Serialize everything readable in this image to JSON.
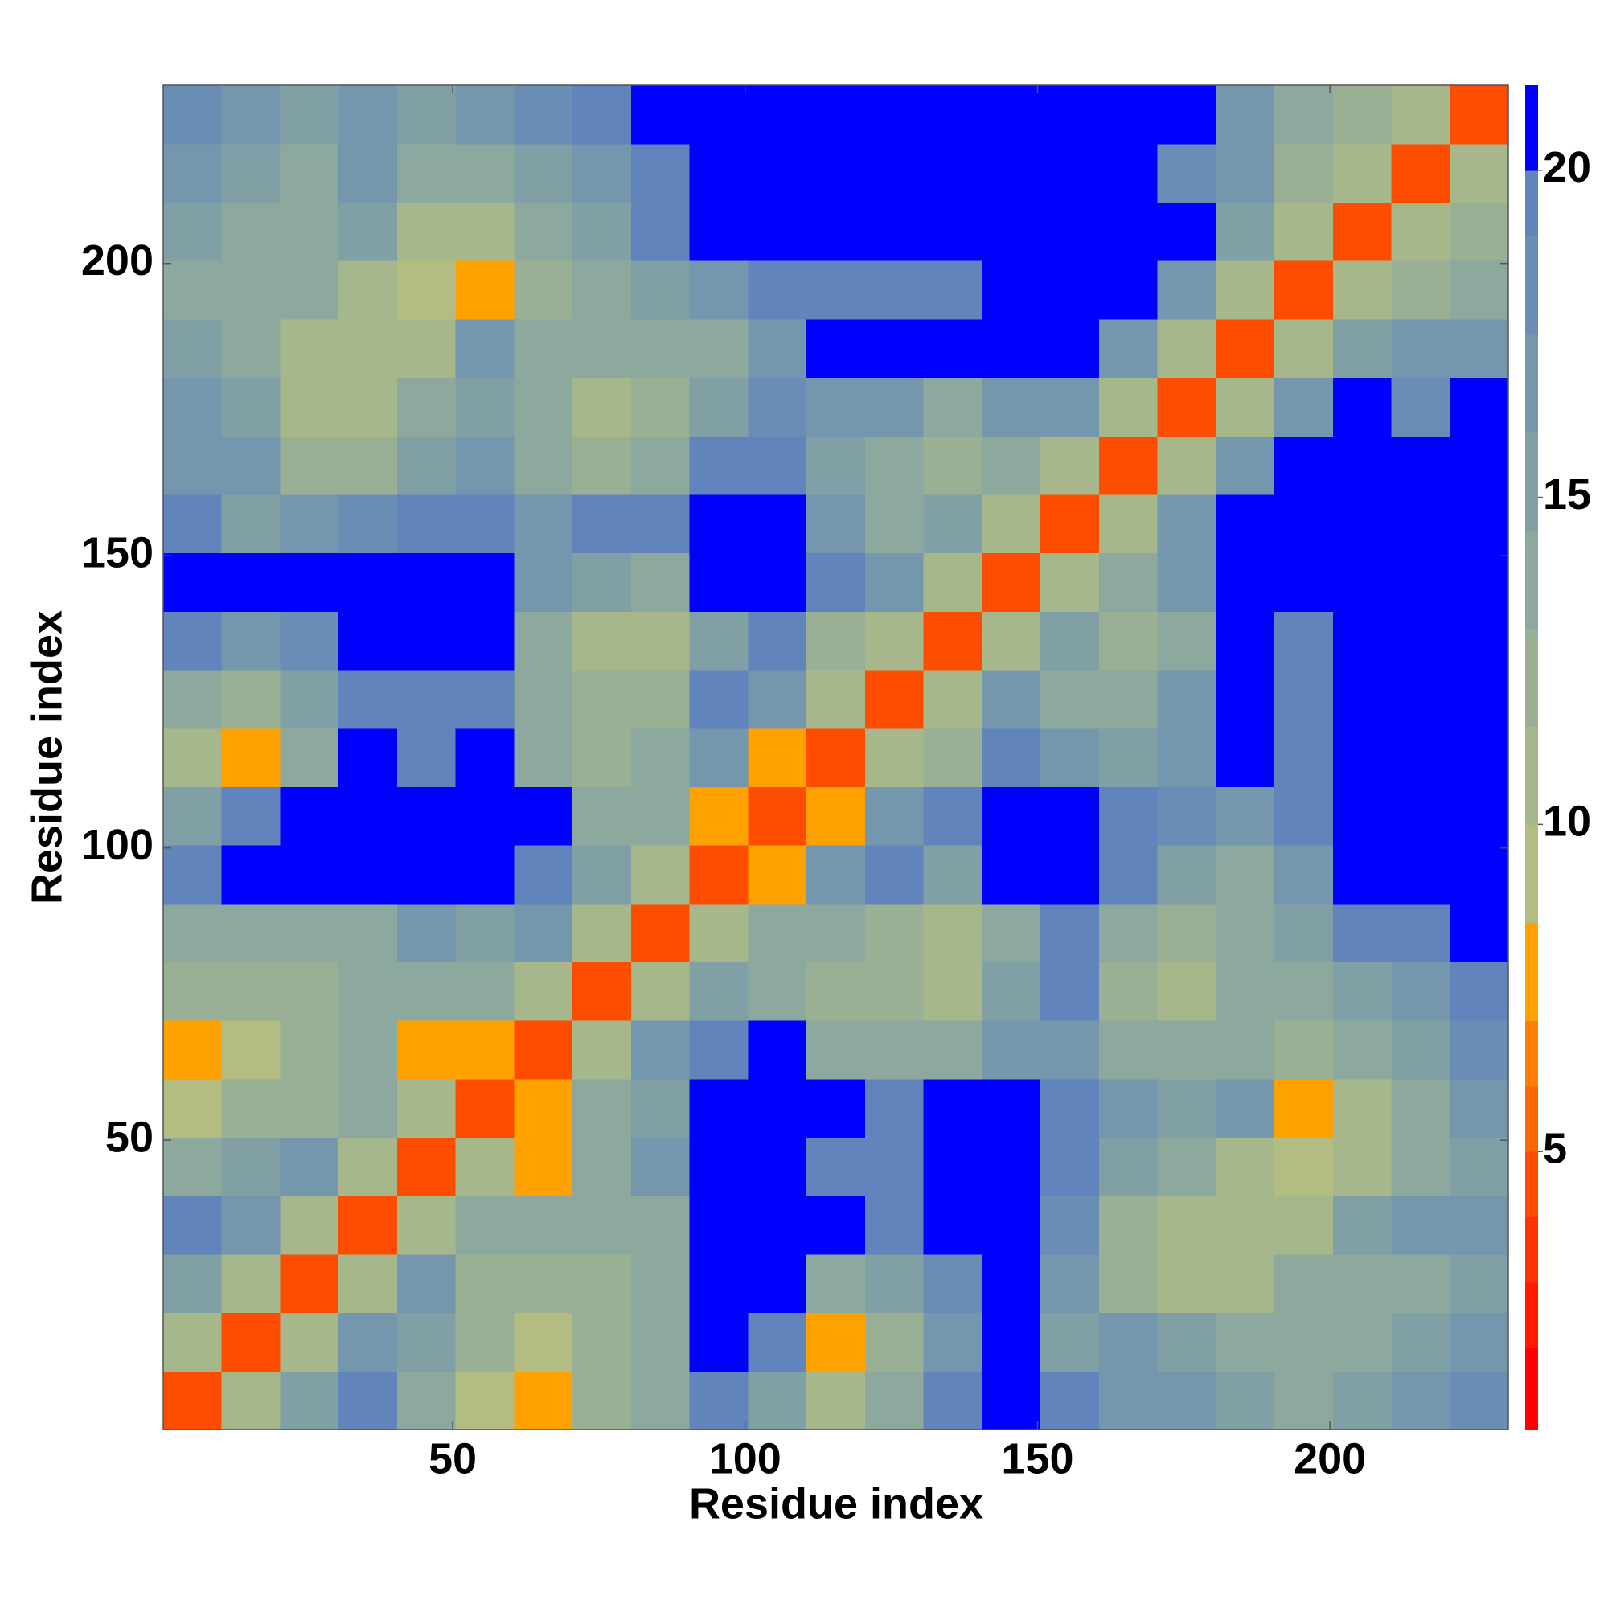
{
  "chart_data": {
    "type": "heatmap",
    "x_label": "Residue index",
    "y_label": "Residue index",
    "x_edges": [
      0.5,
      10.5,
      20.5,
      30.5,
      40.5,
      50.5,
      60.5,
      70.5,
      80.5,
      90.5,
      100.5,
      110.5,
      120.5,
      130.5,
      140.5,
      150.5,
      160.5,
      170.5,
      180.5,
      190.5,
      200.5,
      210.5,
      220.5,
      230.5
    ],
    "y_edges": [
      0.5,
      10.5,
      20.5,
      30.5,
      40.5,
      50.5,
      60.5,
      70.5,
      80.5,
      90.5,
      100.5,
      110.5,
      120.5,
      130.5,
      140.5,
      150.5,
      160.5,
      170.5,
      180.5,
      190.5,
      200.5,
      210.5,
      220.5,
      230.5
    ],
    "z": [
      [
        4,
        11,
        15,
        19,
        14,
        9,
        8,
        12,
        13,
        19,
        15,
        10,
        13,
        19,
        21,
        19,
        17,
        16,
        15,
        14,
        15,
        17,
        18
      ],
      [
        11,
        4,
        11,
        17,
        15,
        12,
        9,
        12,
        14,
        21,
        19,
        8,
        12,
        17,
        21,
        15,
        16,
        15,
        14,
        14,
        14,
        15,
        16
      ],
      [
        15,
        11,
        4,
        11,
        17,
        12,
        12,
        12,
        14,
        21,
        21,
        14,
        15,
        18,
        21,
        16,
        12,
        11,
        11,
        13,
        13,
        14,
        15
      ],
      [
        19,
        17,
        11,
        4,
        11,
        13,
        13,
        13,
        14,
        21,
        21,
        21,
        19,
        21,
        21,
        18,
        12,
        11,
        10,
        11,
        15,
        16,
        17
      ],
      [
        14,
        15,
        17,
        11,
        4,
        11,
        8,
        14,
        16,
        21,
        21,
        19,
        19,
        21,
        21,
        19,
        15,
        13,
        11,
        9,
        10,
        14,
        15
      ],
      [
        9,
        12,
        12,
        13,
        11,
        4,
        7,
        13,
        15,
        21,
        21,
        21,
        19,
        21,
        21,
        19,
        17,
        15,
        16,
        8,
        10,
        14,
        16
      ],
      [
        8,
        9,
        12,
        13,
        8,
        7,
        4,
        11,
        16,
        19,
        21,
        14,
        13,
        14,
        16,
        17,
        14,
        14,
        14,
        12,
        14,
        15,
        18
      ],
      [
        12,
        12,
        12,
        13,
        14,
        13,
        11,
        4,
        11,
        15,
        14,
        12,
        12,
        11,
        15,
        19,
        12,
        11,
        13,
        14,
        15,
        17,
        19
      ],
      [
        13,
        14,
        14,
        14,
        16,
        15,
        16,
        11,
        4,
        11,
        13,
        13,
        12,
        11,
        14,
        19,
        13,
        12,
        13,
        15,
        19,
        19,
        21
      ],
      [
        19,
        21,
        21,
        21,
        21,
        21,
        19,
        15,
        11,
        4,
        7,
        16,
        19,
        15,
        21,
        21,
        19,
        15,
        14,
        17,
        21,
        21,
        21
      ],
      [
        15,
        19,
        21,
        21,
        21,
        21,
        21,
        14,
        13,
        7,
        4,
        8,
        17,
        19,
        21,
        21,
        19,
        18,
        16,
        19,
        21,
        20,
        21
      ],
      [
        10,
        8,
        14,
        21,
        19,
        21,
        14,
        12,
        13,
        16,
        8,
        4,
        11,
        12,
        19,
        16,
        15,
        17,
        21,
        19,
        21,
        21,
        21
      ],
      [
        13,
        12,
        15,
        19,
        19,
        19,
        13,
        12,
        12,
        19,
        17,
        11,
        4,
        11,
        17,
        14,
        13,
        16,
        21,
        19,
        20,
        21,
        21
      ],
      [
        19,
        17,
        18,
        21,
        21,
        21,
        14,
        11,
        11,
        15,
        19,
        12,
        11,
        4,
        11,
        15,
        12,
        14,
        21,
        19,
        21,
        21,
        21
      ],
      [
        21,
        21,
        21,
        21,
        21,
        21,
        16,
        15,
        14,
        21,
        21,
        19,
        17,
        11,
        4,
        11,
        13,
        17,
        21,
        21,
        21,
        21,
        21
      ],
      [
        19,
        15,
        16,
        18,
        19,
        19,
        17,
        19,
        19,
        21,
        21,
        16,
        14,
        15,
        11,
        4,
        11,
        17,
        21,
        21,
        21,
        21,
        21
      ],
      [
        17,
        16,
        12,
        12,
        15,
        17,
        14,
        12,
        13,
        19,
        19,
        15,
        13,
        12,
        13,
        11,
        4,
        11,
        17,
        21,
        21,
        21,
        21
      ],
      [
        16,
        15,
        11,
        11,
        13,
        15,
        14,
        11,
        12,
        15,
        18,
        17,
        16,
        14,
        17,
        17,
        11,
        4,
        11,
        16,
        20,
        18,
        21
      ],
      [
        15,
        14,
        11,
        10,
        11,
        16,
        14,
        13,
        13,
        14,
        16,
        21,
        21,
        21,
        21,
        21,
        17,
        11,
        4,
        11,
        15,
        16,
        17
      ],
      [
        14,
        14,
        13,
        11,
        9,
        8,
        12,
        14,
        15,
        17,
        19,
        19,
        19,
        19,
        21,
        21,
        21,
        16,
        11,
        4,
        11,
        12,
        13
      ],
      [
        15,
        14,
        13,
        15,
        10,
        10,
        14,
        15,
        19,
        21,
        21,
        21,
        20,
        21,
        21,
        21,
        21,
        20,
        15,
        11,
        4,
        11,
        12
      ],
      [
        17,
        15,
        14,
        16,
        14,
        14,
        15,
        17,
        19,
        21,
        20,
        21,
        21,
        21,
        21,
        21,
        21,
        18,
        16,
        12,
        11,
        4,
        11
      ],
      [
        18,
        16,
        15,
        17,
        15,
        16,
        18,
        19,
        21,
        21,
        21,
        21,
        21,
        21,
        21,
        21,
        21,
        21,
        17,
        13,
        12,
        11,
        4
      ]
    ],
    "xlim": [
      0.5,
      230.5
    ],
    "ylim": [
      0.5,
      230.5
    ],
    "xticks": [
      50,
      100,
      150,
      200
    ],
    "yticks": [
      50,
      100,
      150,
      200
    ],
    "colorbar": {
      "lim": [
        0.75,
        21.3
      ],
      "ticks": [
        5,
        10,
        15,
        20
      ],
      "levels": [
        0.75,
        2,
        3,
        4,
        5,
        6,
        7,
        8.5,
        10,
        11.5,
        13,
        14.5,
        16,
        17.5,
        19,
        20,
        21.3
      ],
      "colors": [
        "#ff0000",
        "#ff1a00",
        "#ff3300",
        "#ff4d00",
        "#ff6600",
        "#ff8000",
        "#ffa200",
        "#b3bd82",
        "#a6b78b",
        "#99b094",
        "#8da89d",
        "#80a0a6",
        "#7497ae",
        "#6a8db6",
        "#6184bc",
        "#0000ff"
      ]
    }
  }
}
